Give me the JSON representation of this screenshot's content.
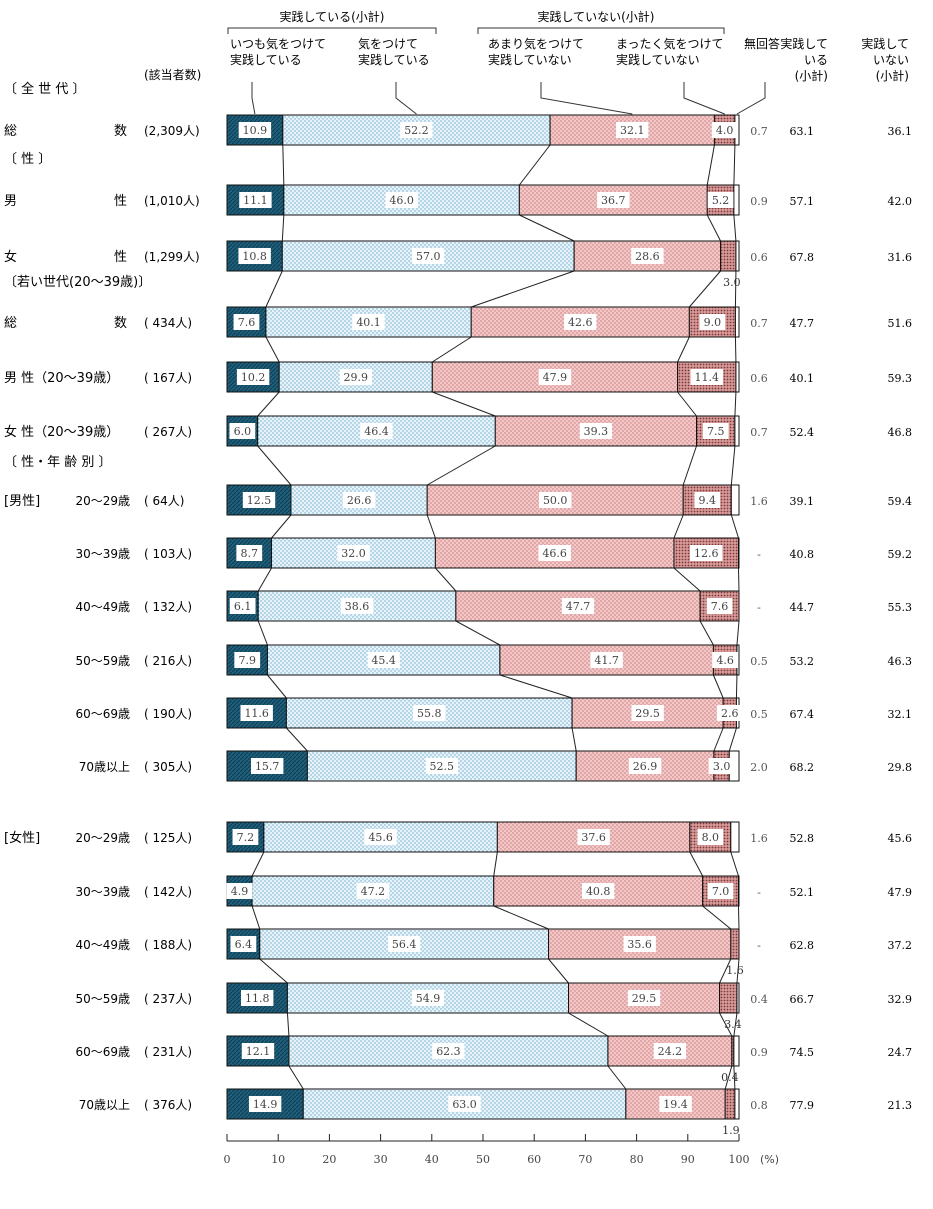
{
  "chart_data": {
    "type": "bar",
    "stacked": true,
    "orientation": "horizontal",
    "unit": "(%)",
    "xlim": [
      0,
      100
    ],
    "x_ticks": [
      "0",
      "10",
      "20",
      "30",
      "40",
      "50",
      "60",
      "70",
      "80",
      "90",
      "100"
    ],
    "header": {
      "group_practicing": "実践している(小計)",
      "group_not_practicing": "実践していない(小計)",
      "count_label": "(該当者数)",
      "no_answer": "無回答",
      "subtotal_yes": [
        "実践して",
        "いる",
        "(小計)"
      ],
      "subtotal_no": [
        "実践して",
        "いない",
        "(小計)"
      ]
    },
    "series": [
      {
        "name": [
          "いつも気をつけて",
          "実践している"
        ],
        "color": "#1f5f7a"
      },
      {
        "name": [
          "気をつけて",
          "実践している"
        ],
        "color": "#d8ecf6"
      },
      {
        "name": [
          "あまり気をつけて",
          "実践していない"
        ],
        "color": "#f2bcbc"
      },
      {
        "name": [
          "まったく気をつけて",
          "実践していない"
        ],
        "color": "#c98d8d"
      }
    ],
    "sections": [
      {
        "label": "〔 全 世 代 〕",
        "y": 93
      },
      {
        "label": "〔 性 〕",
        "y": 163
      },
      {
        "label": "〔若い世代(20～39歳)〕",
        "y": 286
      },
      {
        "label": "〔 性・年 齢 別 〕",
        "y": 466
      }
    ],
    "rows": [
      {
        "label": "総 数",
        "count": "(2,309人)",
        "values": [
          10.9,
          52.2,
          32.1,
          4.0
        ],
        "labels": [
          "10.9",
          "52.2",
          "32.1",
          "4.0"
        ],
        "na": "0.7",
        "yes": "63.1",
        "no": "36.1"
      },
      {
        "label": "男 性",
        "count": "(1,010人)",
        "values": [
          11.1,
          46.0,
          36.7,
          5.2
        ],
        "labels": [
          "11.1",
          "46.0",
          "36.7",
          "5.2"
        ],
        "na": "0.9",
        "yes": "57.1",
        "no": "42.0"
      },
      {
        "label": "女 性",
        "count": "(1,299人)",
        "values": [
          10.8,
          57.0,
          28.6,
          3.0
        ],
        "labels": [
          "10.8",
          "57.0",
          "28.6",
          "3.0"
        ],
        "na": "0.6",
        "yes": "67.8",
        "no": "31.6"
      },
      {
        "label": "総 数",
        "count": "( 434人)",
        "values": [
          7.6,
          40.1,
          42.6,
          9.0
        ],
        "labels": [
          "7.6",
          "40.1",
          "42.6",
          "9.0"
        ],
        "na": "0.7",
        "yes": "47.7",
        "no": "51.6"
      },
      {
        "label": "男 性（20～39歳）",
        "count": "( 167人)",
        "values": [
          10.2,
          29.9,
          47.9,
          11.4
        ],
        "labels": [
          "10.2",
          "29.9",
          "47.9",
          "11.4"
        ],
        "na": "0.6",
        "yes": "40.1",
        "no": "59.3"
      },
      {
        "label": "女 性（20～39歳）",
        "count": "( 267人)",
        "values": [
          6.0,
          46.4,
          39.3,
          7.5
        ],
        "labels": [
          "6.0",
          "46.4",
          "39.3",
          "7.5"
        ],
        "na": "0.7",
        "yes": "52.4",
        "no": "46.8"
      },
      {
        "label": "20～29歳",
        "group": "[男性]",
        "count": "( 64人)",
        "values": [
          12.5,
          26.6,
          50.0,
          9.4
        ],
        "labels": [
          "12.5",
          "26.6",
          "50.0",
          "9.4"
        ],
        "na": "1.6",
        "yes": "39.1",
        "no": "59.4"
      },
      {
        "label": "30～39歳",
        "count": "( 103人)",
        "values": [
          8.7,
          32.0,
          46.6,
          12.6
        ],
        "labels": [
          "8.7",
          "32.0",
          "46.6",
          "12.6"
        ],
        "na": "-",
        "yes": "40.8",
        "no": "59.2"
      },
      {
        "label": "40～49歳",
        "count": "( 132人)",
        "values": [
          6.1,
          38.6,
          47.7,
          7.6
        ],
        "labels": [
          "6.1",
          "38.6",
          "47.7",
          "7.6"
        ],
        "na": "-",
        "yes": "44.7",
        "no": "55.3"
      },
      {
        "label": "50～59歳",
        "count": "( 216人)",
        "values": [
          7.9,
          45.4,
          41.7,
          4.6
        ],
        "labels": [
          "7.9",
          "45.4",
          "41.7",
          "4.6"
        ],
        "na": "0.5",
        "yes": "53.2",
        "no": "46.3"
      },
      {
        "label": "60～69歳",
        "count": "( 190人)",
        "values": [
          11.6,
          55.8,
          29.5,
          2.6
        ],
        "labels": [
          "11.6",
          "55.8",
          "29.5",
          "2.6"
        ],
        "na": "0.5",
        "yes": "67.4",
        "no": "32.1"
      },
      {
        "label": "70歳以上",
        "count": "( 305人)",
        "values": [
          15.7,
          52.5,
          26.9,
          3.0
        ],
        "labels": [
          "15.7",
          "52.5",
          "26.9",
          "3.0"
        ],
        "na": "2.0",
        "yes": "68.2",
        "no": "29.8"
      },
      {
        "label": "20～29歳",
        "group": "[女性]",
        "count": "( 125人)",
        "values": [
          7.2,
          45.6,
          37.6,
          8.0
        ],
        "labels": [
          "7.2",
          "45.6",
          "37.6",
          "8.0"
        ],
        "na": "1.6",
        "yes": "52.8",
        "no": "45.6"
      },
      {
        "label": "30～39歳",
        "count": "( 142人)",
        "values": [
          4.9,
          47.2,
          40.8,
          7.0
        ],
        "labels": [
          "4.9",
          "47.2",
          "40.8",
          "7.0"
        ],
        "na": "-",
        "yes": "52.1",
        "no": "47.9"
      },
      {
        "label": "40～49歳",
        "count": "( 188人)",
        "values": [
          6.4,
          56.4,
          35.6,
          1.6
        ],
        "labels": [
          "6.4",
          "56.4",
          "35.6",
          "1.6"
        ],
        "na": "-",
        "yes": "62.8",
        "no": "37.2"
      },
      {
        "label": "50～59歳",
        "count": "( 237人)",
        "values": [
          11.8,
          54.9,
          29.5,
          3.4
        ],
        "labels": [
          "11.8",
          "54.9",
          "29.5",
          "3.4"
        ],
        "na": "0.4",
        "yes": "66.7",
        "no": "32.9"
      },
      {
        "label": "60～69歳",
        "count": "( 231人)",
        "values": [
          12.1,
          62.3,
          24.2,
          0.4
        ],
        "labels": [
          "12.1",
          "62.3",
          "24.2",
          "0.4"
        ],
        "na": "0.9",
        "yes": "74.5",
        "no": "24.7"
      },
      {
        "label": "70歳以上",
        "count": "( 376人)",
        "values": [
          14.9,
          63.0,
          19.4,
          1.9
        ],
        "labels": [
          "14.9",
          "63.0",
          "19.4",
          "1.9"
        ],
        "na": "0.8",
        "yes": "77.9",
        "no": "21.3"
      }
    ]
  }
}
